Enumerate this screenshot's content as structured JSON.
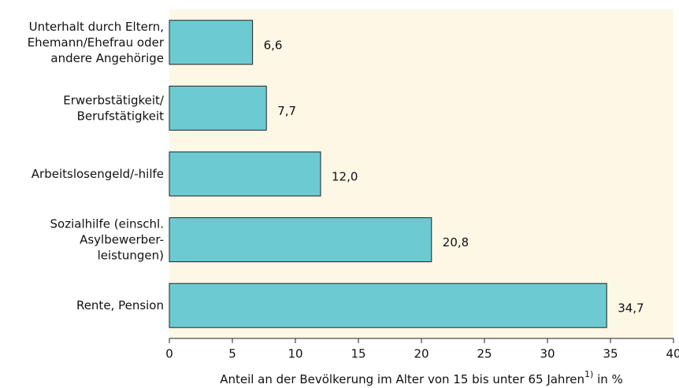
{
  "chart_data": {
    "type": "bar",
    "orientation": "horizontal",
    "categories": [
      [
        "Unterhalt durch Eltern,",
        "Ehemann/Ehefrau oder",
        "andere Angehörige"
      ],
      [
        "Erwerbstätigkeit/",
        "Berufstätigkeit"
      ],
      [
        "Arbeitslosengeld/-hilfe"
      ],
      [
        "Sozialhilfe (einschl.",
        "Asylbewerber-",
        "leistungen)"
      ],
      [
        "Rente, Pension"
      ]
    ],
    "values": [
      6.6,
      7.7,
      12.0,
      20.8,
      34.7
    ],
    "value_labels": [
      "6,6",
      "7,7",
      "12,0",
      "20,8",
      "34,7"
    ],
    "color": "#6ccbd2",
    "background": "#fdf7e6",
    "xlim": [
      0,
      40
    ],
    "xticks": [
      0,
      5,
      10,
      15,
      20,
      25,
      30,
      35,
      40
    ],
    "xlabel": "Anteil an der Bevölkerung im Alter von 15 bis unter 65 Jahren",
    "xlabel_note": "1)",
    "xlabel_unit": " in %"
  }
}
